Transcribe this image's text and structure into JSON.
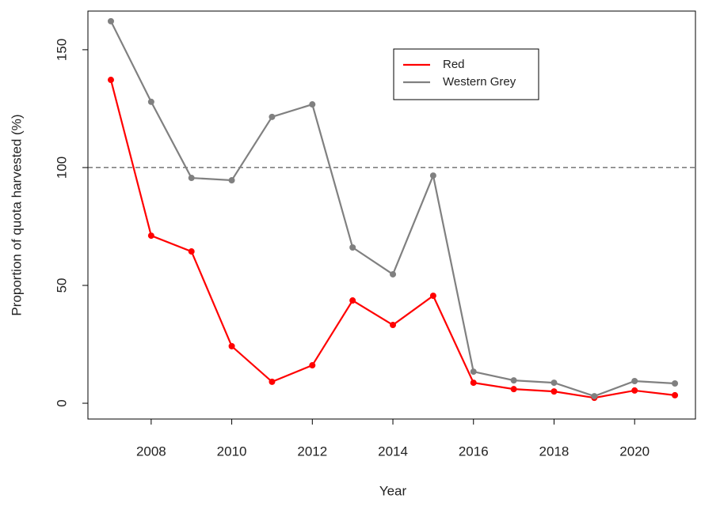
{
  "chart_data": {
    "type": "line",
    "xlabel": "Year",
    "ylabel": "Proportion of quota harvested (%)",
    "x": [
      2007,
      2008,
      2009,
      2010,
      2011,
      2012,
      2013,
      2014,
      2015,
      2016,
      2017,
      2018,
      2019,
      2020,
      2021
    ],
    "series": [
      {
        "name": "Red",
        "color": "#ff0000",
        "values": [
          137.2,
          71.1,
          64.4,
          24.2,
          9.1,
          16.1,
          43.6,
          33.2,
          45.6,
          8.7,
          6.0,
          5.0,
          2.3,
          5.4,
          3.4
        ]
      },
      {
        "name": "Western Grey",
        "color": "#808080",
        "values": [
          162.1,
          127.9,
          95.6,
          94.6,
          121.5,
          126.8,
          66.1,
          54.7,
          96.6,
          13.4,
          9.7,
          8.7,
          3.0,
          9.4,
          8.4
        ]
      }
    ],
    "hline": 100,
    "xlim": [
      2006.43,
      2021.51
    ],
    "xticks": [
      2008,
      2010,
      2012,
      2014,
      2016,
      2018,
      2020
    ],
    "ylim": [
      -6.7,
      166.4
    ],
    "yticks": [
      0,
      50,
      100,
      150
    ],
    "legend": "top-center"
  }
}
